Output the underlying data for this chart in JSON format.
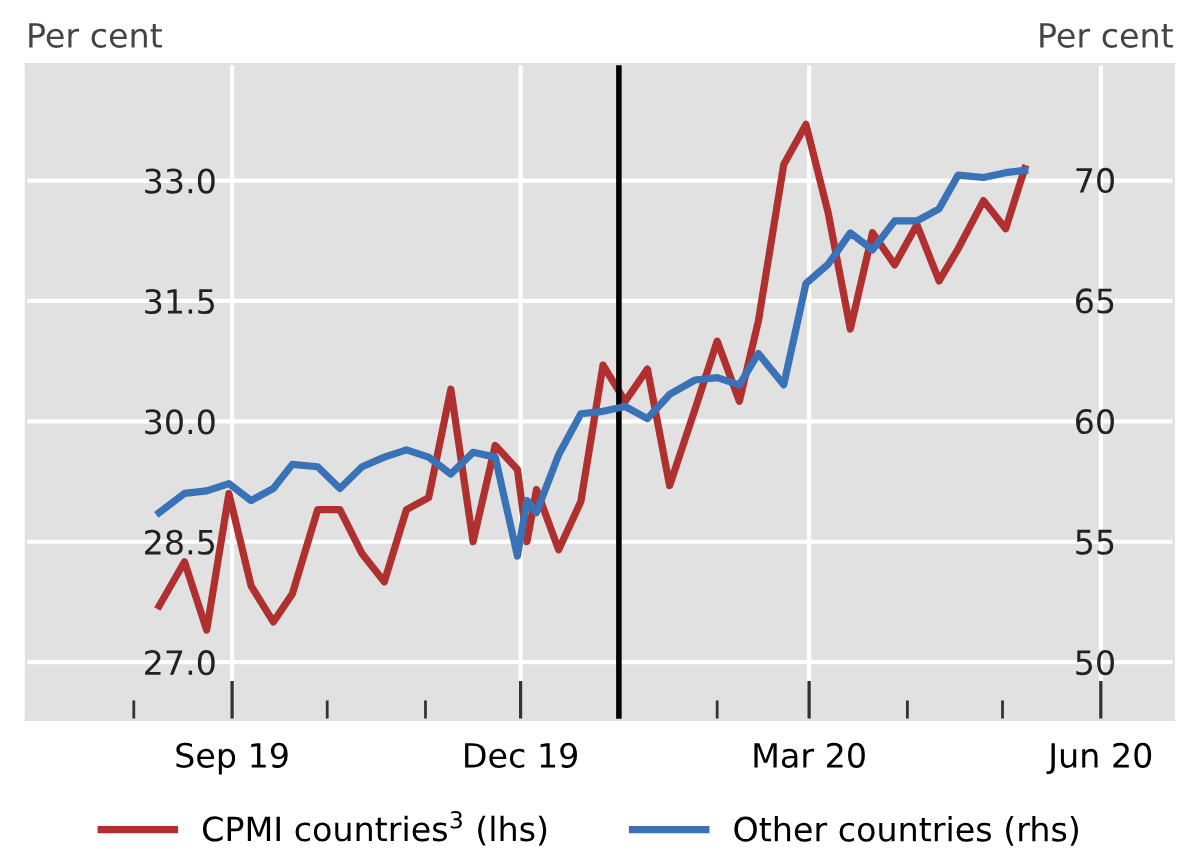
{
  "chart_data": {
    "type": "line",
    "x": [
      "2019-08-09",
      "2019-08-17",
      "2019-08-24",
      "2019-08-31",
      "2019-09-07",
      "2019-09-14",
      "2019-09-20",
      "2019-09-28",
      "2019-10-05",
      "2019-10-12",
      "2019-10-19",
      "2019-10-26",
      "2019-11-02",
      "2019-11-09",
      "2019-11-16",
      "2019-11-23",
      "2019-11-30",
      "2019-12-03",
      "2019-12-06",
      "2019-12-13",
      "2019-12-20",
      "2019-12-27",
      "2020-01-03",
      "2020-01-10",
      "2020-01-17",
      "2020-01-25",
      "2020-02-01",
      "2020-02-08",
      "2020-02-14",
      "2020-02-22",
      "2020-02-29",
      "2020-03-07",
      "2020-03-14",
      "2020-03-21",
      "2020-03-28",
      "2020-04-04",
      "2020-04-11",
      "2020-04-17",
      "2020-04-25",
      "2020-05-02",
      "2020-05-08"
    ],
    "series": [
      {
        "name": "CPMI countries$^{3}$ (lhs)",
        "color": "#b0302f",
        "values": [
          27.7,
          28.25,
          27.4,
          29.1,
          27.95,
          27.5,
          27.85,
          28.9,
          28.9,
          28.35,
          28.0,
          28.9,
          29.05,
          30.4,
          28.5,
          29.7,
          29.4,
          28.5,
          29.15,
          28.4,
          29.0,
          30.7,
          30.25,
          30.65,
          29.2,
          30.15,
          31.0,
          30.25,
          31.25,
          33.2,
          33.7,
          32.6,
          31.15,
          32.35,
          31.95,
          32.45,
          31.75,
          32.15,
          32.75,
          32.4,
          33.15
        ]
      },
      {
        "name": "Other countries (rhs)",
        "color": "#3a72b8",
        "axis": "y2",
        "values": [
          56.2,
          57.0,
          57.1,
          57.4,
          56.7,
          57.2,
          58.2,
          58.1,
          57.2,
          58.1,
          58.5,
          58.8,
          58.5,
          57.8,
          58.7,
          58.5,
          54.4,
          56.7,
          56.2,
          58.6,
          60.3,
          60.4,
          60.6,
          60.1,
          61.1,
          61.7,
          61.8,
          61.5,
          62.8,
          61.5,
          65.7,
          66.5,
          67.8,
          67.1,
          68.3,
          68.3,
          68.8,
          70.2,
          70.1,
          70.3,
          70.4
        ]
      }
    ],
    "ylabel": "Per cent",
    "y2label": "Per cent",
    "xlim": [
      "2019-06-28",
      "2020-06-24"
    ],
    "xticks": [
      {
        "value": "2019-08-01",
        "label": null
      },
      {
        "value": "2019-09-01",
        "label": "Sep 19"
      },
      {
        "value": "2019-10-01",
        "label": null
      },
      {
        "value": "2019-11-01",
        "label": null
      },
      {
        "value": "2019-12-01",
        "label": "Dec 19"
      },
      {
        "value": "2020-01-01",
        "label": null
      },
      {
        "value": "2020-02-01",
        "label": null
      },
      {
        "value": "2020-03-01",
        "label": "Mar 20"
      },
      {
        "value": "2020-04-01",
        "label": null
      },
      {
        "value": "2020-05-01",
        "label": null
      },
      {
        "value": "2020-06-01",
        "label": "Jun 20"
      }
    ],
    "ylim": [
      26.28,
      34.45
    ],
    "yticks": [
      {
        "value": 27,
        "label": "27.0"
      },
      {
        "value": 28.5,
        "label": "28.5"
      },
      {
        "value": 30,
        "label": "30.0"
      },
      {
        "value": 31.5,
        "label": "31.5"
      },
      {
        "value": 33,
        "label": "33.0"
      }
    ],
    "y2lim": [
      47.6,
      74.8
    ],
    "y2ticks": [
      50,
      55,
      60,
      65,
      70
    ],
    "ref_lines": [
      {
        "axis": "x",
        "value": "2020-01-01",
        "color": "#000000"
      }
    ],
    "grid": true,
    "legend": "bottom",
    "line_style": "solid",
    "marker": "none"
  }
}
